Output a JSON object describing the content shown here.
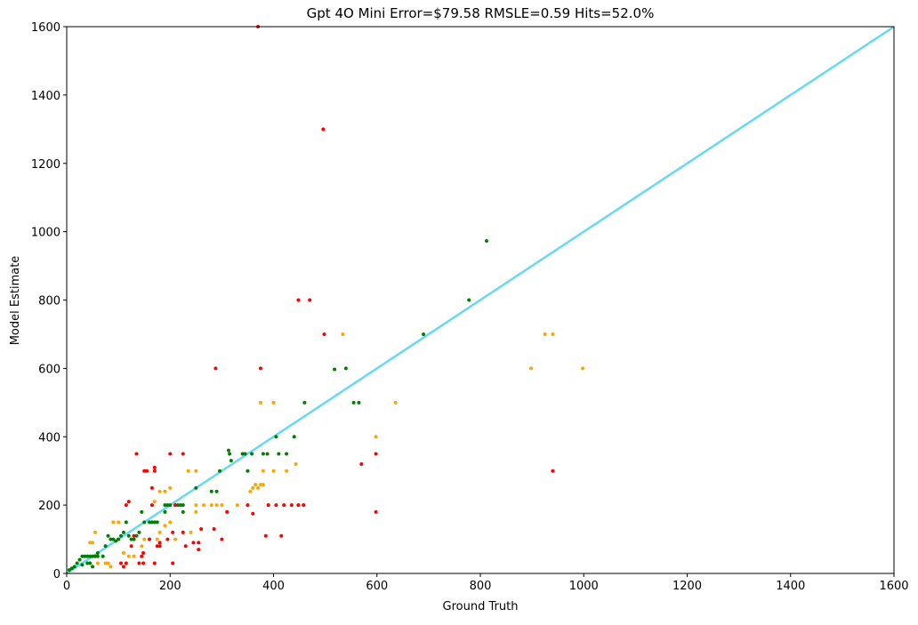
{
  "chart_data": {
    "type": "scatter",
    "title": "Gpt 4O Mini Error=$79.58 RMSLE=0.59 Hits=52.0%",
    "x_label": "Ground Truth",
    "y_label": "Model Estimate",
    "xlim": [
      0,
      1600
    ],
    "ylim": [
      0,
      1600
    ],
    "xticks": [
      0,
      200,
      400,
      600,
      800,
      1000,
      1200,
      1400,
      1600
    ],
    "yticks": [
      0,
      200,
      400,
      600,
      800,
      1000,
      1200,
      1400,
      1600
    ],
    "series": [
      {
        "color": "green",
        "x": [
          812,
          778,
          690,
          540,
          518,
          565,
          555,
          460,
          440,
          405,
          425,
          410,
          388,
          380,
          358,
          345,
          340,
          350,
          313,
          315,
          318,
          296,
          290,
          280,
          250,
          225,
          220,
          215,
          210,
          200,
          195,
          190,
          225,
          190,
          175,
          170,
          165,
          160,
          150,
          145,
          140,
          135,
          130,
          125,
          120,
          115,
          110,
          105,
          100,
          95,
          90,
          85,
          80,
          75,
          60,
          55,
          50,
          45,
          40,
          35,
          30,
          25,
          20,
          15,
          10,
          5,
          45,
          40,
          30,
          50,
          60,
          70
        ],
        "y": [
          973,
          800,
          700,
          600,
          597,
          500,
          500,
          500,
          400,
          400,
          350,
          350,
          350,
          350,
          350,
          350,
          350,
          300,
          360,
          350,
          330,
          300,
          240,
          240,
          250,
          200,
          200,
          200,
          200,
          200,
          200,
          200,
          180,
          180,
          150,
          150,
          150,
          150,
          150,
          180,
          120,
          110,
          100,
          100,
          110,
          150,
          120,
          110,
          100,
          95,
          100,
          100,
          110,
          80,
          50,
          50,
          50,
          50,
          50,
          50,
          50,
          40,
          30,
          20,
          15,
          10,
          30,
          30,
          25,
          20,
          60,
          50
        ]
      },
      {
        "color": "orange",
        "x": [
          925,
          940,
          898,
          998,
          534,
          636,
          375,
          400,
          598,
          443,
          425,
          400,
          380,
          380,
          375,
          370,
          365,
          360,
          355,
          330,
          300,
          290,
          280,
          265,
          250,
          250,
          235,
          200,
          190,
          180,
          170,
          200,
          190,
          180,
          175,
          150,
          145,
          130,
          120,
          110,
          100,
          90,
          80,
          75,
          85,
          55,
          50,
          45,
          60,
          250,
          240,
          210
        ],
        "y": [
          700,
          700,
          600,
          600,
          700,
          500,
          500,
          500,
          400,
          320,
          300,
          300,
          300,
          260,
          260,
          250,
          260,
          250,
          240,
          200,
          200,
          200,
          200,
          200,
          200,
          300,
          300,
          250,
          240,
          240,
          210,
          150,
          140,
          120,
          100,
          100,
          80,
          50,
          50,
          60,
          150,
          150,
          30,
          30,
          20,
          120,
          90,
          90,
          30,
          180,
          120,
          100
        ]
      },
      {
        "color": "red",
        "x": [
          370,
          496,
          448,
          470,
          498,
          288,
          375,
          570,
          598,
          940,
          598,
          415,
          385,
          360,
          350,
          390,
          405,
          420,
          435,
          448,
          458,
          300,
          310,
          285,
          260,
          255,
          245,
          255,
          230,
          225,
          225,
          200,
          205,
          210,
          195,
          205,
          170,
          170,
          170,
          165,
          155,
          150,
          135,
          140,
          145,
          148,
          148,
          175,
          180,
          115,
          120,
          110,
          115,
          105,
          125,
          130,
          160,
          165,
          180
        ],
        "y": [
          1600,
          1300,
          800,
          800,
          700,
          600,
          600,
          320,
          350,
          300,
          180,
          110,
          110,
          175,
          200,
          200,
          200,
          200,
          200,
          200,
          200,
          100,
          180,
          130,
          130,
          90,
          90,
          70,
          80,
          120,
          350,
          350,
          120,
          200,
          100,
          30,
          30,
          310,
          300,
          250,
          300,
          300,
          350,
          30,
          50,
          60,
          30,
          80,
          80,
          200,
          210,
          20,
          30,
          30,
          80,
          110,
          100,
          200,
          90
        ]
      }
    ]
  }
}
